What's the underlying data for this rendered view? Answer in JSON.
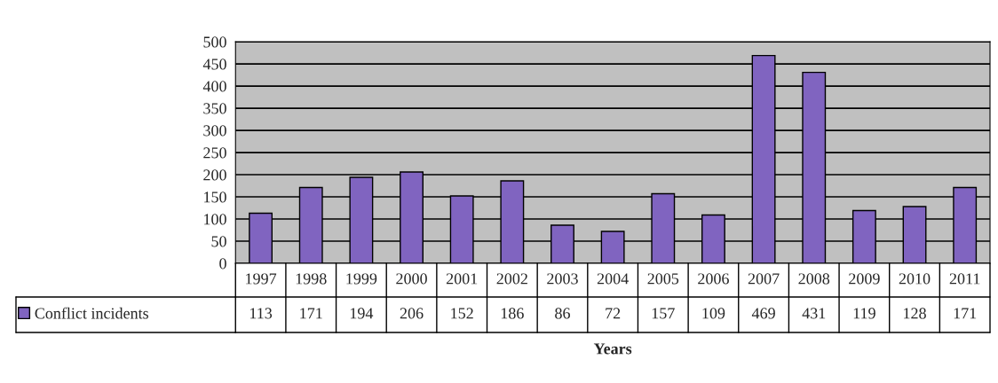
{
  "chart_data": {
    "type": "bar",
    "xlabel": "Years",
    "categories": [
      "1997",
      "1998",
      "1999",
      "2000",
      "2001",
      "2002",
      "2003",
      "2004",
      "2005",
      "2006",
      "2007",
      "2008",
      "2009",
      "2010",
      "2011"
    ],
    "series": [
      {
        "name": "Conflict incidents",
        "color": "#8064c0",
        "values": [
          113,
          171,
          194,
          206,
          152,
          186,
          86,
          72,
          157,
          109,
          469,
          431,
          119,
          128,
          171
        ]
      }
    ],
    "ylim": [
      0,
      500
    ],
    "yticks": [
      0,
      50,
      100,
      150,
      200,
      250,
      300,
      350,
      400,
      450,
      500
    ],
    "grid": "y",
    "legend": "bottom left",
    "data_labels": true
  }
}
